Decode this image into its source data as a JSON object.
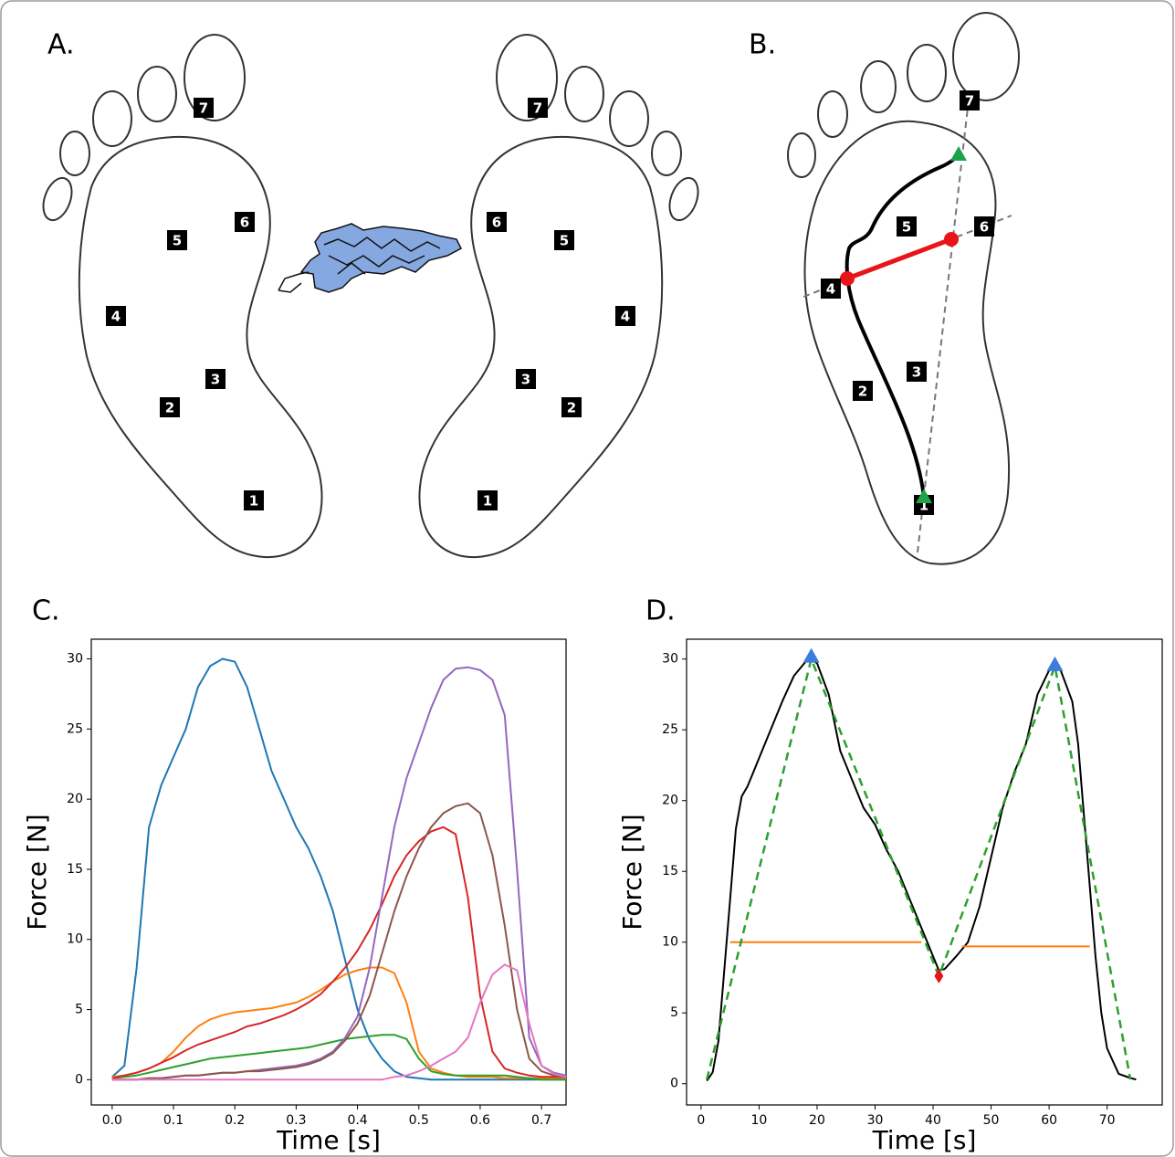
{
  "panel_a": {
    "label": "A.",
    "left_foot_sensors": [
      "1",
      "2",
      "3",
      "4",
      "5",
      "6",
      "7"
    ],
    "right_foot_sensors": [
      "1",
      "2",
      "3",
      "4",
      "5",
      "6",
      "7"
    ]
  },
  "panel_b": {
    "label": "B.",
    "sensors": [
      "1",
      "2",
      "3",
      "4",
      "5",
      "6",
      "7"
    ]
  },
  "chart_data": [
    {
      "type": "line",
      "title": "C.",
      "x_label": "Time [s]",
      "y_label": "Force [N]",
      "x": [
        0,
        0.02,
        0.04,
        0.06,
        0.08,
        0.1,
        0.12,
        0.14,
        0.16,
        0.18,
        0.2,
        0.22,
        0.24,
        0.26,
        0.28,
        0.3,
        0.32,
        0.34,
        0.36,
        0.38,
        0.4,
        0.42,
        0.44,
        0.46,
        0.48,
        0.5,
        0.52,
        0.54,
        0.56,
        0.58,
        0.6,
        0.62,
        0.64,
        0.66,
        0.68,
        0.7,
        0.72,
        0.74
      ],
      "series": [
        {
          "color": "#1f77b4",
          "values": [
            0.2,
            1,
            8,
            18,
            21,
            23,
            25,
            28,
            29.5,
            30,
            29.8,
            28,
            25,
            22,
            20,
            18,
            16.5,
            14.5,
            12,
            8.5,
            5,
            2.8,
            1.5,
            0.6,
            0.2,
            0.1,
            0,
            0,
            0,
            0,
            0,
            0,
            0,
            0,
            0,
            0,
            0,
            0
          ]
        },
        {
          "color": "#ff7f0e",
          "values": [
            0.2,
            0.3,
            0.5,
            0.8,
            1.2,
            2,
            3,
            3.8,
            4.3,
            4.6,
            4.8,
            4.9,
            5,
            5.1,
            5.3,
            5.5,
            5.9,
            6.4,
            7,
            7.5,
            7.8,
            8,
            8,
            7.6,
            5.5,
            2,
            0.8,
            0.5,
            0.3,
            0.2,
            0.2,
            0.2,
            0.1,
            0.1,
            0.1,
            0.1,
            0.1,
            0.1
          ]
        },
        {
          "color": "#2ca02c",
          "values": [
            0.1,
            0.2,
            0.3,
            0.5,
            0.7,
            0.9,
            1.1,
            1.3,
            1.5,
            1.6,
            1.7,
            1.8,
            1.9,
            2,
            2.1,
            2.2,
            2.3,
            2.5,
            2.7,
            2.9,
            3,
            3.1,
            3.2,
            3.2,
            2.9,
            1.5,
            0.6,
            0.4,
            0.3,
            0.3,
            0.3,
            0.3,
            0.3,
            0.2,
            0.1,
            0,
            0,
            0
          ]
        },
        {
          "color": "#d62728",
          "values": [
            0.1,
            0.3,
            0.5,
            0.8,
            1.2,
            1.6,
            2.1,
            2.5,
            2.8,
            3.1,
            3.4,
            3.8,
            4,
            4.3,
            4.6,
            5,
            5.5,
            6.1,
            7,
            8,
            9.2,
            10.7,
            12.5,
            14.5,
            16,
            17,
            17.7,
            18,
            17.5,
            13,
            6,
            2,
            0.8,
            0.5,
            0.3,
            0.2,
            0.2,
            0.2
          ]
        },
        {
          "color": "#9467bd",
          "values": [
            0,
            0,
            0,
            0.1,
            0.1,
            0.2,
            0.3,
            0.3,
            0.4,
            0.5,
            0.5,
            0.6,
            0.7,
            0.8,
            0.9,
            1,
            1.2,
            1.5,
            2,
            3,
            4.5,
            8,
            13,
            18,
            21.5,
            24,
            26.5,
            28.5,
            29.3,
            29.4,
            29.2,
            28.5,
            26,
            15,
            3,
            1,
            0.5,
            0.3
          ]
        },
        {
          "color": "#8c564b",
          "values": [
            0,
            0,
            0,
            0.1,
            0.1,
            0.2,
            0.3,
            0.3,
            0.4,
            0.5,
            0.5,
            0.6,
            0.6,
            0.7,
            0.8,
            0.9,
            1.1,
            1.4,
            1.9,
            2.8,
            4,
            6,
            9,
            12,
            14.5,
            16.5,
            18,
            19,
            19.5,
            19.7,
            19,
            16,
            11,
            5,
            1.5,
            0.6,
            0.3,
            0.2
          ]
        },
        {
          "color": "#e377c2",
          "values": [
            0,
            0,
            0,
            0,
            0,
            0,
            0,
            0,
            0,
            0,
            0,
            0,
            0,
            0,
            0,
            0,
            0,
            0,
            0,
            0,
            0,
            0,
            0,
            0.2,
            0.3,
            0.6,
            1,
            1.5,
            2,
            3,
            5.5,
            7.5,
            8.2,
            7.8,
            4,
            1,
            0.4,
            0.2
          ]
        }
      ],
      "xlim": [
        -0.034,
        0.74
      ],
      "xticks": [
        {
          "value": 0,
          "label": "0.0"
        },
        0.1,
        0.2,
        0.3,
        0.4,
        0.5,
        0.6,
        0.7
      ],
      "ylim": [
        -1.8,
        31.4
      ],
      "yticks": [
        0,
        5,
        10,
        15,
        20,
        25,
        30
      ]
    },
    {
      "type": "line",
      "title": "D.",
      "x_label": "Time [s]",
      "y_label": "Force [N]",
      "series": [
        {
          "color": "#000000",
          "style": "solid",
          "x": [
            1,
            2,
            3,
            4,
            5,
            6,
            7,
            8,
            9,
            10,
            12,
            14,
            16,
            18,
            19,
            20,
            22,
            24,
            26,
            28,
            30,
            32,
            34,
            36,
            38,
            39,
            40,
            41,
            42,
            44,
            46,
            48,
            50,
            52,
            54,
            56,
            58,
            60,
            61,
            62,
            64,
            65,
            66,
            67,
            68,
            69,
            70,
            72,
            74,
            75
          ],
          "values": [
            0.2,
            0.8,
            3,
            8,
            13,
            18,
            20.3,
            21,
            22,
            23,
            25,
            27,
            28.8,
            29.8,
            30,
            29.7,
            27.5,
            23.5,
            21.5,
            19.5,
            18.3,
            16.5,
            15,
            13,
            11,
            10,
            9,
            8,
            8.1,
            9,
            10,
            12.5,
            16,
            19.5,
            22,
            24,
            27.5,
            29.2,
            29.5,
            29.2,
            27,
            24,
            19,
            14,
            9,
            5,
            2.5,
            0.7,
            0.4,
            0.3
          ]
        },
        {
          "color": "#ff7f0e",
          "style": "solid",
          "x": [
            5,
            38
          ],
          "values": [
            10,
            10
          ]
        },
        {
          "color": "#ff7f0e",
          "style": "solid",
          "x": [
            45,
            67
          ],
          "values": [
            9.7,
            9.7
          ]
        },
        {
          "color": "#2ca02c",
          "style": "dashed",
          "x": [
            1,
            19,
            41,
            61,
            74
          ],
          "values": [
            0.3,
            30,
            7.6,
            29.5,
            0.3
          ]
        },
        {
          "color": "#3b7ddd",
          "style": "markers",
          "marker": "triangle",
          "x": [
            19,
            61
          ],
          "values": [
            30.2,
            29.6
          ]
        },
        {
          "color": "#e3161b",
          "style": "markers",
          "marker": "diamond",
          "x": [
            41
          ],
          "values": [
            7.6
          ]
        }
      ],
      "xlim": [
        -2.5,
        79.5
      ],
      "xticks": [
        0,
        10,
        20,
        30,
        40,
        50,
        60,
        70
      ],
      "ylim": [
        -1.5,
        31.4
      ],
      "yticks": [
        0,
        5,
        10,
        15,
        20,
        25,
        30
      ]
    }
  ]
}
